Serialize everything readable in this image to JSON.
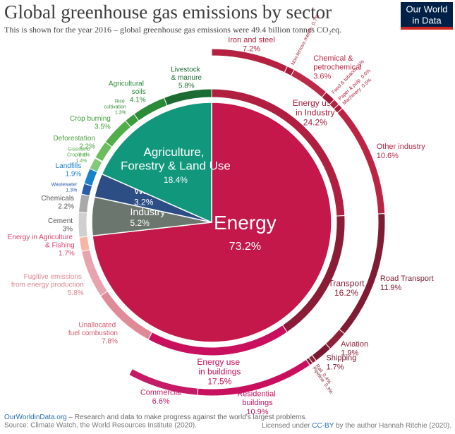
{
  "chart_data": {
    "type": "sunburst",
    "title": "Global greenhouse gas emissions by sector",
    "subtitle": "This is shown for the year 2016 – global greenhouse gas emissions were 49.4 billion tonnes CO₂eq.",
    "categories": [
      "Energy",
      "Industry",
      "Waste",
      "Agriculture, Forestry & Land Use"
    ],
    "values": [
      73.2,
      5.2,
      3.2,
      18.4
    ],
    "value_labels": [
      "73.2%",
      "5.2%",
      "3.2%",
      "18.4%"
    ],
    "colors": [
      "#c4174a",
      "#6b766f",
      "#2c4e85",
      "#10977c"
    ],
    "rings": [
      {
        "categories": [
          "Energy use in Industry",
          "Transport",
          "Energy use in buildings",
          "Unallocated fuel combustion",
          "Fugitive emissions from energy production",
          "Energy in Agriculture & Fishing",
          "Cement",
          "Chemicals",
          "Wastewater",
          "Landfills",
          "Cropland",
          "Grassland",
          "Deforestation",
          "Crop burning",
          "Rice cultivation",
          "Agricultural soils",
          "Livestock & manure"
        ],
        "values": [
          24.2,
          16.2,
          17.5,
          7.8,
          5.8,
          1.7,
          3,
          2.2,
          1.3,
          1.9,
          1.4,
          0.1,
          2.2,
          3.5,
          1.3,
          4.1,
          5.8
        ],
        "value_labels": [
          "24.2%",
          "16.2%",
          "17.5%",
          "7.8%",
          "5.8%",
          "1.7%",
          "3%",
          "2.2%",
          "1.3%",
          "1.9%",
          "1.4%",
          "0.1%",
          "2.2%",
          "3.5%",
          "1.3%",
          "4.1%",
          "5.8%"
        ],
        "colors": [
          "#b01f3f",
          "#8a1c36",
          "#c8105f",
          "#e08a98",
          "#e8a4ae",
          "#f7b5a5",
          "#d0d0d0",
          "#a9a9a9",
          "#2b5ba8",
          "#1781c9",
          "#83c97a",
          "#9bd48f",
          "#6cbd5e",
          "#4fae48",
          "#3c9c3c",
          "#2b8a38",
          "#1b6b32"
        ],
        "text_colors": [
          "#a51e3c",
          "#8a1c36",
          "#c8105f",
          "#d05a6e",
          "#de8793",
          "#d8436a",
          "#555555",
          "#555555",
          "#2b5ba8",
          "#1781c9",
          "#5aab4f",
          "#5aab4f",
          "#4e9e43",
          "#3f9a3a",
          "#358f36",
          "#2b8a38",
          "#1b6b32"
        ]
      },
      {
        "categories": [
          "Iron and steel",
          "Non-ferrous metals",
          "Chemical & petrochemical",
          "Food & tobacco",
          "Paper & pulp",
          "Machinery",
          "Other industry",
          "Road Transport",
          "Aviation",
          "Shipping",
          "Rail",
          "Pipeline",
          "Residential buildings",
          "Commercial"
        ],
        "values": [
          7.2,
          0.7,
          3.6,
          1,
          0.6,
          0.5,
          10.6,
          11.9,
          1.9,
          1.7,
          0.4,
          0.3,
          10.9,
          6.6
        ],
        "value_labels": [
          "7.2%",
          "0.7%",
          "3.6%",
          "1%",
          "0.6%",
          "0.5%",
          "10.6%",
          "11.9%",
          "1.9%",
          "1.7%",
          "0.4%",
          "0.3%",
          "10.9%",
          "6.6%"
        ],
        "colors": [
          "#b52140",
          "#a81c3a",
          "#bd2a48",
          "#a31b38",
          "#b52140",
          "#a81c3a",
          "#bb2543",
          "#7f1c34",
          "#8e2139",
          "#7a1a31",
          "#8e2139",
          "#7a1a31",
          "#c8105f",
          "#c51a66"
        ]
      }
    ]
  },
  "logo": [
    "Our World",
    "in Data"
  ],
  "footer": {
    "site": "OurWorldinData.org",
    "tagline": " – Research and data to make progress against the world's largest problems.",
    "source": "Source: Climate Watch, the World Resources Institute (2020).",
    "license": [
      "Licensed under ",
      "CC-BY",
      " by the author Hannah Ritchie (2020)."
    ]
  }
}
